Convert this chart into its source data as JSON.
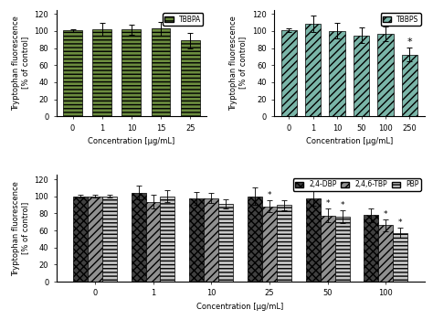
{
  "tbbpa": {
    "title": "TBBPA",
    "categories": [
      "0",
      "1",
      "10",
      "15",
      "25"
    ],
    "values": [
      100.5,
      102.5,
      101.5,
      103.0,
      89.0
    ],
    "errors": [
      1.5,
      7.5,
      6.0,
      8.0,
      9.0
    ],
    "bar_color": "#6b8c3e",
    "hatch": "----",
    "sig": [
      false,
      false,
      false,
      false,
      true
    ]
  },
  "tbbps": {
    "title": "TBBPS",
    "categories": [
      "0",
      "1",
      "10",
      "50",
      "100",
      "250"
    ],
    "values": [
      101.0,
      108.5,
      100.0,
      95.0,
      96.5,
      72.5
    ],
    "errors": [
      2.0,
      10.0,
      9.0,
      9.5,
      8.5,
      8.0
    ],
    "bar_color": "#7ab5a8",
    "hatch": "////",
    "sig": [
      false,
      false,
      false,
      false,
      false,
      true
    ]
  },
  "bottom": {
    "title_24dbp": "2,4-DBP",
    "title_246tbp": "2,4,6-TBP",
    "title_pbp": "PBP",
    "categories": [
      "0",
      "1",
      "10",
      "25",
      "50",
      "100"
    ],
    "values_24dbp": [
      100.0,
      104.0,
      97.5,
      100.0,
      98.0,
      78.0
    ],
    "errors_24dbp": [
      1.5,
      8.0,
      7.5,
      10.0,
      9.0,
      8.0
    ],
    "sig_24dbp": [
      false,
      false,
      false,
      false,
      false,
      false
    ],
    "values_246tbp": [
      100.0,
      93.5,
      98.0,
      88.0,
      77.5,
      66.0
    ],
    "errors_246tbp": [
      1.5,
      8.0,
      6.0,
      7.0,
      8.0,
      7.0
    ],
    "sig_246tbp": [
      false,
      false,
      false,
      true,
      true,
      true
    ],
    "values_pbp": [
      100.0,
      100.0,
      91.0,
      89.5,
      76.5,
      57.0
    ],
    "errors_pbp": [
      1.5,
      7.0,
      5.0,
      5.5,
      7.5,
      6.0
    ],
    "sig_pbp": [
      false,
      false,
      false,
      false,
      true,
      true
    ],
    "color_24dbp": "#404040",
    "color_246tbp": "#909090",
    "color_pbp": "#c8c8c8",
    "hatch_24dbp": "xxxx",
    "hatch_246tbp": "////",
    "hatch_pbp": "----"
  },
  "xlabel": "Concentration [µg/mL]",
  "ylabel": "Tryptophan fluorescence\n[% of control]",
  "ylim": [
    0,
    125
  ],
  "yticks": [
    0,
    20,
    40,
    60,
    80,
    100,
    120
  ]
}
